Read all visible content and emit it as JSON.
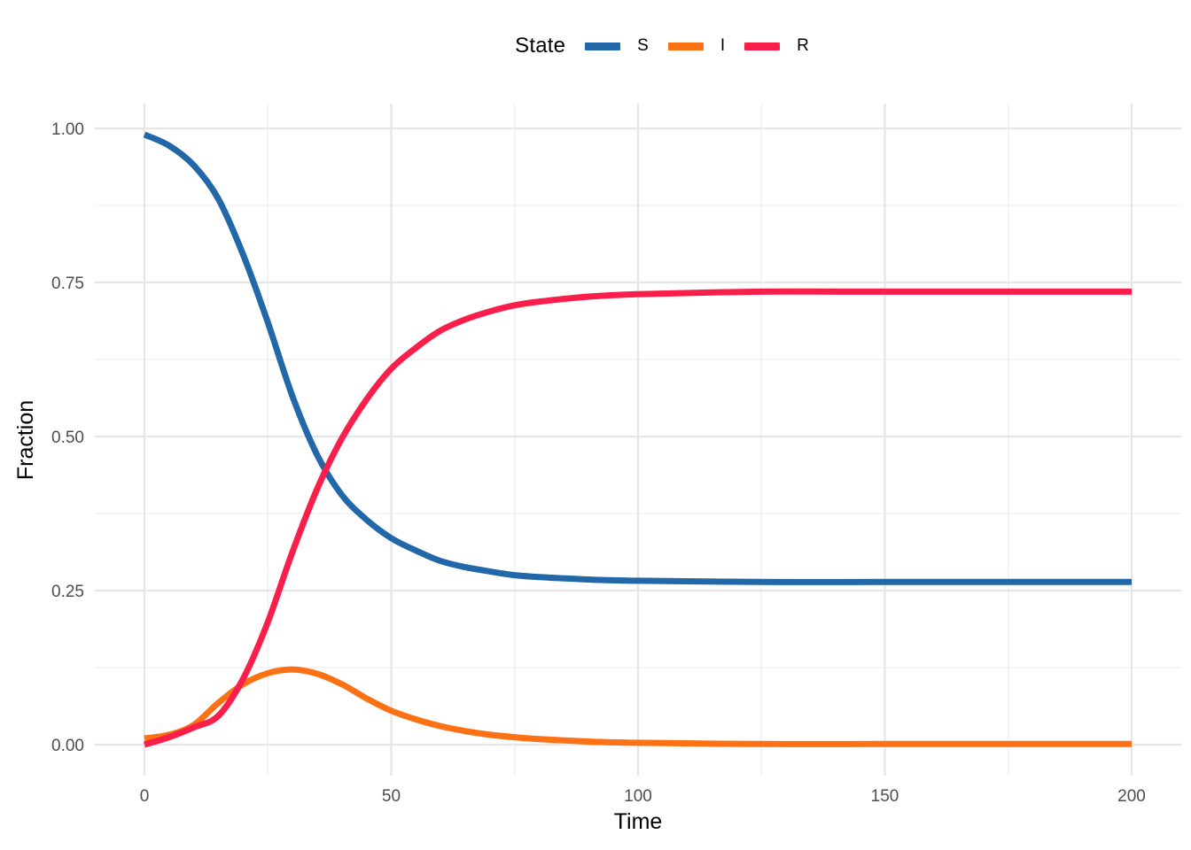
{
  "page": {
    "background": "#ffffff"
  },
  "legend": {
    "title": "State",
    "entries": [
      {
        "label": "S",
        "color": "#2268A9"
      },
      {
        "label": "I",
        "color": "#FD7115"
      },
      {
        "label": "R",
        "color": "#FA1E4B"
      }
    ]
  },
  "axes": {
    "x": {
      "title": "Time",
      "tick_labels": [
        "0",
        "50",
        "100",
        "150",
        "200"
      ]
    },
    "y": {
      "title": "Fraction",
      "tick_labels": [
        "0.00",
        "0.25",
        "0.50",
        "0.75",
        "1.00"
      ]
    }
  },
  "chart_data": {
    "type": "line",
    "title": "",
    "xlabel": "Time",
    "ylabel": "Fraction",
    "legend_title": "State",
    "legend_position": "top",
    "grid": "major and minor gridlines, light gray, white background (ggplot theme_minimal style)",
    "xlim": [
      0,
      200
    ],
    "ylim": [
      0,
      1
    ],
    "x_ticks": [
      0,
      50,
      100,
      150,
      200
    ],
    "y_ticks": [
      0,
      0.25,
      0.5,
      0.75,
      1.0
    ],
    "x": [
      0,
      5,
      10,
      15,
      20,
      25,
      30,
      35,
      40,
      45,
      50,
      55,
      60,
      65,
      70,
      75,
      80,
      90,
      100,
      125,
      150,
      175,
      200
    ],
    "series": [
      {
        "name": "S",
        "color": "#2268A9",
        "values": [
          0.99,
          0.972,
          0.94,
          0.885,
          0.795,
          0.685,
          0.565,
          0.47,
          0.405,
          0.365,
          0.335,
          0.315,
          0.298,
          0.288,
          0.281,
          0.275,
          0.272,
          0.268,
          0.266,
          0.264,
          0.264,
          0.264,
          0.264
        ]
      },
      {
        "name": "I",
        "color": "#FD7115",
        "values": [
          0.01,
          0.016,
          0.032,
          0.068,
          0.098,
          0.116,
          0.122,
          0.115,
          0.098,
          0.075,
          0.055,
          0.041,
          0.03,
          0.022,
          0.016,
          0.012,
          0.009,
          0.005,
          0.003,
          0.001,
          0.001,
          0.001,
          0.001
        ]
      },
      {
        "name": "R",
        "color": "#FA1E4B",
        "values": [
          0.0,
          0.012,
          0.028,
          0.047,
          0.107,
          0.199,
          0.313,
          0.415,
          0.497,
          0.56,
          0.61,
          0.644,
          0.672,
          0.69,
          0.703,
          0.713,
          0.719,
          0.727,
          0.731,
          0.735,
          0.735,
          0.735,
          0.735
        ]
      }
    ]
  }
}
